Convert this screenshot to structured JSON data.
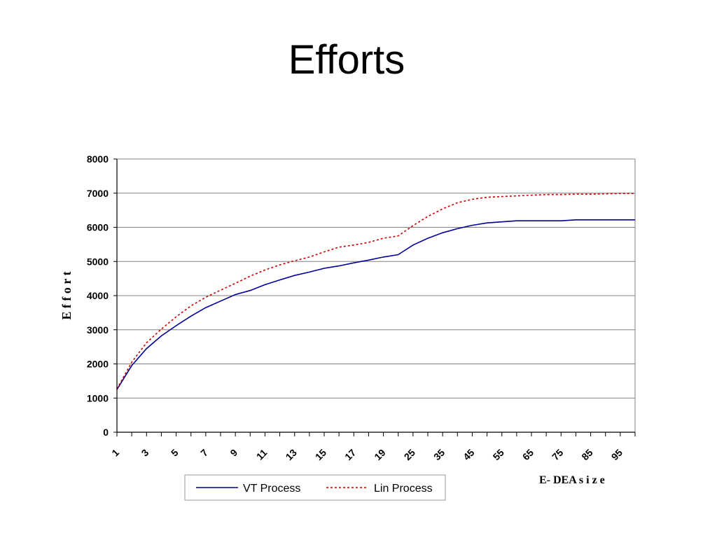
{
  "slide": {
    "title": "Efforts"
  },
  "chart_data": {
    "type": "line",
    "title": "",
    "xlabel": "E- DEA  s i z e",
    "ylabel": "E f f o r t",
    "ylim": [
      0,
      8000
    ],
    "yticks": [
      0,
      1000,
      2000,
      3000,
      4000,
      5000,
      6000,
      7000,
      8000
    ],
    "grid": true,
    "legend": "bottom",
    "categories": [
      1,
      2,
      3,
      4,
      5,
      6,
      7,
      8,
      9,
      10,
      11,
      12,
      13,
      14,
      15,
      16,
      17,
      18,
      19,
      20,
      25,
      30,
      35,
      40,
      45,
      50,
      55,
      60,
      65,
      70,
      75,
      80,
      85,
      90,
      95,
      100
    ],
    "tick_labels": [
      "1",
      "3",
      "5",
      "7",
      "9",
      "11",
      "13",
      "15",
      "17",
      "19",
      "25",
      "35",
      "45",
      "55",
      "65",
      "75",
      "85",
      "95"
    ],
    "series": [
      {
        "name": "VT Process",
        "color": "#000099",
        "dash": "solid",
        "values": [
          1250,
          1950,
          2450,
          2820,
          3120,
          3400,
          3650,
          3840,
          4030,
          4150,
          4320,
          4460,
          4590,
          4690,
          4800,
          4870,
          4960,
          5040,
          5130,
          5200,
          5480,
          5680,
          5840,
          5960,
          6060,
          6130,
          6160,
          6190,
          6190,
          6190,
          6190,
          6220,
          6220,
          6220,
          6220,
          6220
        ]
      },
      {
        "name": "Lin Process",
        "color": "#cc0000",
        "dash": "dotted",
        "values": [
          1270,
          2050,
          2620,
          3020,
          3380,
          3700,
          3950,
          4160,
          4360,
          4570,
          4750,
          4900,
          5020,
          5130,
          5280,
          5420,
          5480,
          5560,
          5680,
          5750,
          6050,
          6320,
          6540,
          6720,
          6820,
          6880,
          6900,
          6920,
          6940,
          6960,
          6960,
          6970,
          6970,
          6980,
          6990,
          6990
        ]
      }
    ]
  }
}
